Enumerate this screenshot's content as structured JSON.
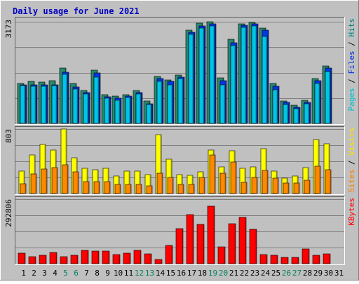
{
  "chart_data": {
    "type": "bar",
    "title": "Daily usage for June 2021",
    "categories": [
      "1",
      "2",
      "3",
      "4",
      "5",
      "6",
      "7",
      "8",
      "9",
      "10",
      "11",
      "12",
      "13",
      "14",
      "15",
      "16",
      "17",
      "18",
      "19",
      "20",
      "21",
      "22",
      "23",
      "24",
      "25",
      "26",
      "27",
      "28",
      "29",
      "30",
      "31"
    ],
    "weekend_days": [
      "5",
      "6",
      "12",
      "13",
      "19",
      "20",
      "26",
      "27"
    ],
    "panels": [
      {
        "id": "pages_files_hits",
        "max_label": "3173",
        "ymax": 3173,
        "legend": [
          {
            "text": "Pages",
            "color": "#00C0D0"
          },
          {
            "text": " / ",
            "color": "#000000"
          },
          {
            "text": "Files",
            "color": "#0030E0"
          },
          {
            "text": " / ",
            "color": "#000000"
          },
          {
            "text": "Hits",
            "color": "#008080"
          }
        ],
        "series": [
          {
            "name": "Hits",
            "color": "#288870",
            "values": [
              1250,
              1313,
              1301,
              1341,
              1734,
              1250,
              1027,
              1665,
              887,
              855,
              887,
              1027,
              698,
              1469,
              1355,
              1515,
              2916,
              3138,
              3173,
              1413,
              2629,
              3106,
              3150,
              2966,
              1244,
              698,
              570,
              712,
              1401,
              1803,
              0
            ]
          },
          {
            "name": "Files",
            "color": "#0038E8",
            "values": [
              1205,
              1209,
              1213,
              1209,
              1605,
              1128,
              970,
              1571,
              841,
              785,
              857,
              971,
              612,
              1405,
              1317,
              1453,
              2838,
              3047,
              3114,
              1334,
              2508,
              3053,
              3116,
              2902,
              1155,
              653,
              510,
              660,
              1335,
              1718,
              0
            ]
          },
          {
            "name": "Pages",
            "color": "#00C4E8",
            "values": [
              1173,
              1164,
              1161,
              1173,
              1537,
              1063,
              920,
              1454,
              780,
              720,
              800,
              912,
              580,
              1312,
              1204,
              1405,
              2780,
              2977,
              3038,
              1213,
              2421,
              2995,
              3047,
              2712,
              1060,
              580,
              470,
              620,
              1240,
              1622,
              0
            ]
          }
        ]
      },
      {
        "id": "visits_sites",
        "max_label": "803",
        "ymax": 803,
        "legend": [
          {
            "text": "Sites",
            "color": "#FF8000"
          },
          {
            "text": " / ",
            "color": "#000000"
          },
          {
            "text": "Visits",
            "color": "#FFE000"
          }
        ],
        "series": [
          {
            "name": "Visits",
            "color": "#FFFF00",
            "values": [
              278,
              479,
              612,
              542,
              803,
              445,
              318,
              300,
              311,
              219,
              283,
              278,
              240,
              730,
              424,
              236,
              231,
              269,
              545,
              331,
              531,
              317,
              329,
              559,
              281,
              188,
              216,
              325,
              669,
              617,
              0
            ]
          },
          {
            "name": "Sites",
            "color": "#FF8800",
            "values": [
              125,
              246,
              307,
              320,
              355,
              267,
              146,
              151,
              149,
              111,
              117,
              112,
              98,
              256,
              202,
              114,
              115,
              197,
              484,
              257,
              392,
              140,
              202,
              289,
              191,
              128,
              133,
              167,
              339,
              296,
              0
            ]
          }
        ]
      },
      {
        "id": "kbytes",
        "max_label": "292806",
        "ymax": 320000,
        "legend": [
          {
            "text": "KBytes",
            "color": "#FF0000"
          }
        ],
        "series": [
          {
            "name": "KBytes",
            "color": "#FF0000",
            "values": [
              53000,
              35000,
              40000,
              55000,
              35000,
              40000,
              65000,
              64000,
              64000,
              45000,
              53000,
              66000,
              48000,
              20000,
              92000,
              175000,
              245000,
              196000,
              286000,
              84000,
              199000,
              230000,
              172000,
              45000,
              42000,
              30000,
              31000,
              74000,
              40000,
              50000,
              0
            ]
          }
        ]
      }
    ]
  }
}
